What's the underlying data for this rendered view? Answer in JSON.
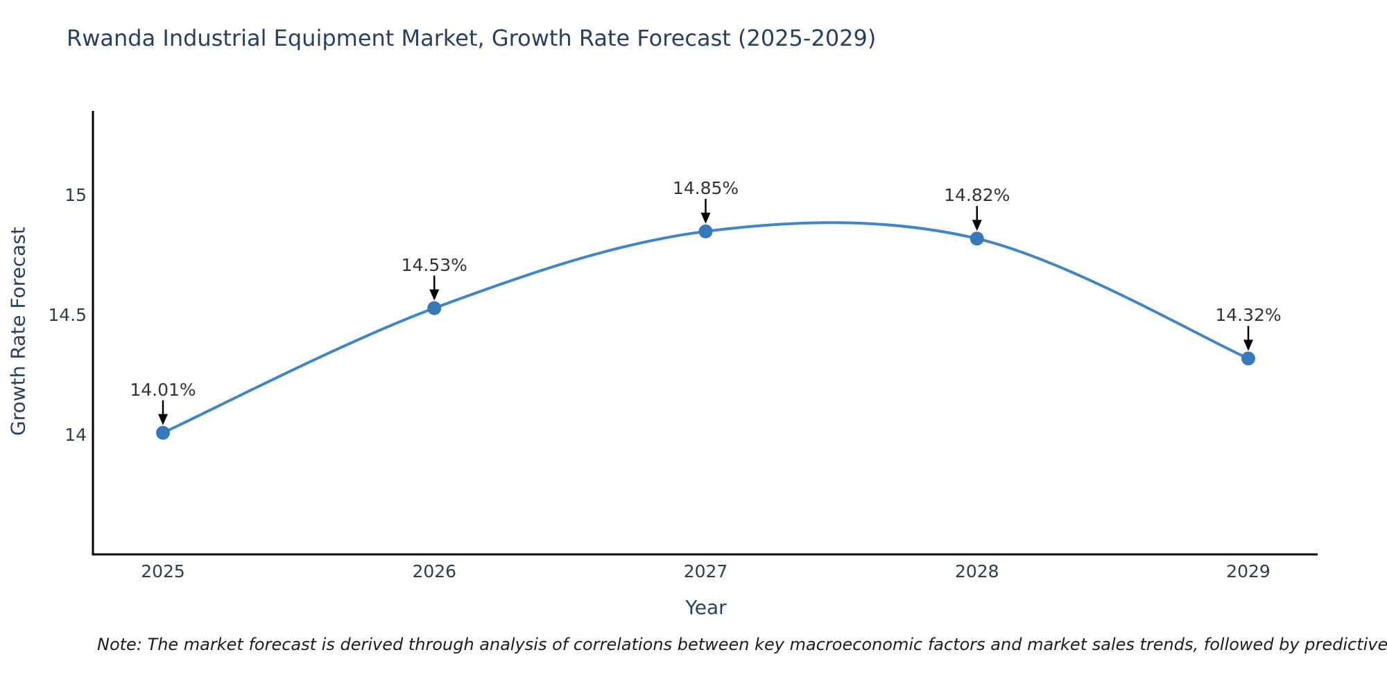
{
  "title": {
    "text": "Rwanda Industrial Equipment Market, Growth Rate Forecast (2025-2029)",
    "color": "#2a3f5f"
  },
  "chart_data": {
    "type": "line",
    "x": [
      2025,
      2026,
      2027,
      2028,
      2029
    ],
    "y": [
      14.01,
      14.53,
      14.85,
      14.82,
      14.32
    ],
    "point_labels": [
      "14.01%",
      "14.53%",
      "14.85%",
      "14.82%",
      "14.32%"
    ],
    "xtick_labels": [
      "2025",
      "2026",
      "2027",
      "2028",
      "2029"
    ],
    "ytick_values": [
      14,
      14.5,
      15
    ],
    "ytick_labels": [
      "14",
      "14.5",
      "15"
    ],
    "xlabel": "Year",
    "ylabel": "Growth Rate Forecast",
    "ylim": [
      13.5,
      15.35
    ],
    "grid": false,
    "legend": "none",
    "line_color": "#4285c3",
    "marker_color": "#3878ba",
    "arrow_color": "#000000",
    "axis_line_color": "#000000"
  },
  "note": {
    "text": "Note: The market forecast is derived through analysis of correlations between key macroeconomic factors and market sales trends, followed by predictive modeling to project future sal"
  }
}
